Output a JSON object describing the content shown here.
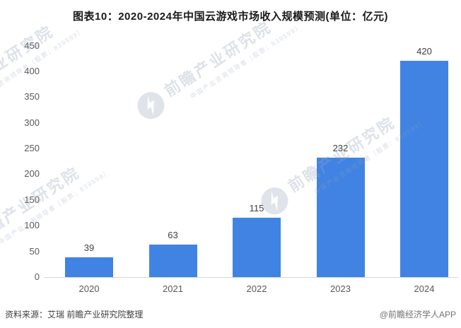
{
  "header": {
    "title": "图表10：2020-2024年中国云游戏市场收入规模预测(单位：亿元)"
  },
  "footer": {
    "source": "资料来源：艾瑞 前瞻产业研究院整理",
    "credit": "@前瞻经济学人APP"
  },
  "watermark": {
    "brand": "前瞻产业研究院",
    "slogan": "中国产业咨询领导者（股票：839599）"
  },
  "colors": {
    "bar": "#4183E2",
    "axis_line": "#d4d7dc",
    "tick_label": "#595959",
    "value_label": "#404040",
    "title": "#1a1a1a",
    "watermark": "#aebacd"
  },
  "chart_data": {
    "type": "bar",
    "title": "图表10：2020-2024年中国云游戏市场收入规模预测(单位：亿元)",
    "unit": "亿元",
    "categories": [
      "2020",
      "2021",
      "2022",
      "2023",
      "2024"
    ],
    "values": [
      39,
      63,
      115,
      232,
      420
    ],
    "xlabel": "",
    "ylabel": "",
    "ylim": [
      0,
      450
    ],
    "ytick_step": 50,
    "yticks": [
      0,
      50,
      100,
      150,
      200,
      250,
      300,
      350,
      400,
      450
    ],
    "grid": false,
    "legend": "none",
    "bar_labels_shown": true
  }
}
